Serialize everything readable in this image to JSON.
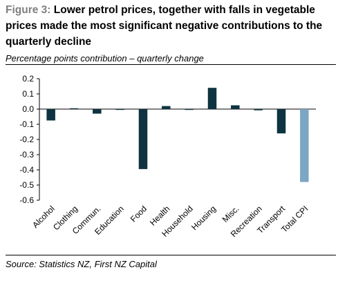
{
  "figure": {
    "label": "Figure 3:",
    "title": "Lower petrol prices, together with falls in vegetable prices made the most significant negative contributions to the quarterly decline",
    "subtitle": "Percentage points contribution – quarterly change",
    "source": "Source: Statistics NZ,  First NZ Capital"
  },
  "chart_data": {
    "type": "bar",
    "title": "Lower petrol prices, together with falls in vegetable prices made the most significant negative contributions to the quarterly decline",
    "subtitle": "Percentage points contribution – quarterly change",
    "xlabel": "",
    "ylabel": "",
    "ylim": [
      -0.6,
      0.2
    ],
    "yticks": [
      0.2,
      0.1,
      0.0,
      -0.1,
      -0.2,
      -0.3,
      -0.4,
      -0.5,
      -0.6
    ],
    "ytick_labels": [
      "0.2",
      "0.1",
      "0.0",
      "-0.1",
      "-0.2",
      "-0.3",
      "-0.4",
      "-0.5",
      "-0.6"
    ],
    "categories": [
      "Alcohol",
      "Clothing",
      "Commun.",
      "Education",
      "Food",
      "Health",
      "Household",
      "Housing",
      "Misc.",
      "Recreation",
      "Transport",
      "Total CPI"
    ],
    "values": [
      -0.075,
      0.005,
      -0.03,
      -0.003,
      -0.395,
      0.02,
      -0.005,
      0.14,
      0.025,
      -0.008,
      -0.16,
      -0.48
    ],
    "colors": {
      "component": "#0d3440",
      "total": "#7ba6c4"
    },
    "highlight_category": "Total CPI",
    "grid": false,
    "legend": "none"
  }
}
